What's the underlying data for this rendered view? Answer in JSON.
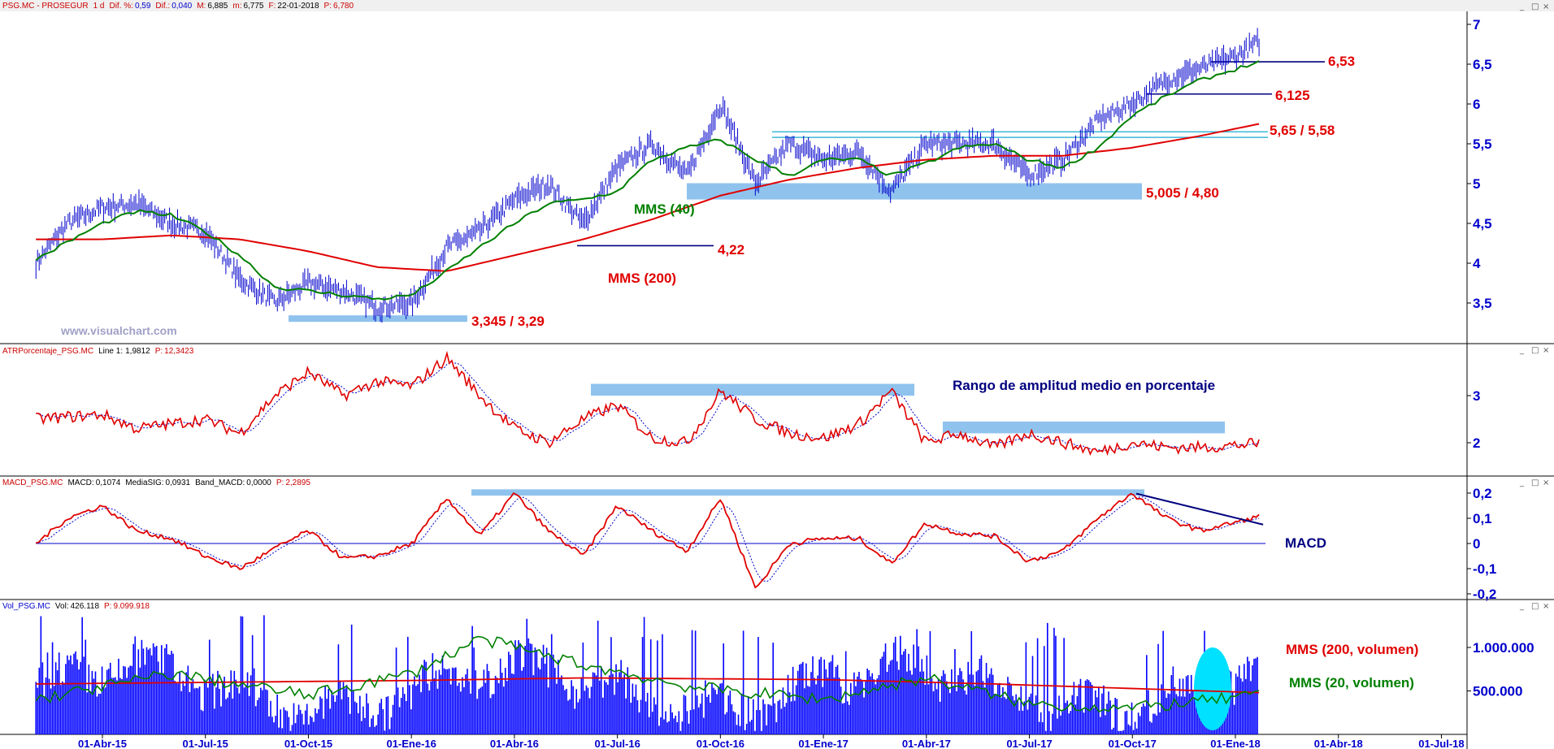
{
  "colors": {
    "price": "#0000cc",
    "mms200": "#e00000",
    "mms40": "#008000",
    "band": "#8fc3ee",
    "annot_red": "#e00000",
    "annot_green": "#008000",
    "annot_navy": "#000080",
    "axis": "#0000cc",
    "volume": "#0000ff",
    "highlight": "#00e0ff"
  },
  "panels": {
    "price": {
      "header": {
        "symbol": "PSG.MC - PROSEGUR",
        "interval": "1 d",
        "dif_pct_label": "Dif. %:",
        "dif_pct": "0,59",
        "dif_label": "Dif.:",
        "dif": "0,040",
        "max_label": "M:",
        "max": "6,885",
        "min_label": "m:",
        "min": "6,775",
        "date_label": "F:",
        "date": "22-01-2018",
        "last_label": "P:",
        "last": "6,780"
      },
      "watermark": "www.visualchart.com"
    },
    "atr": {
      "header": {
        "name": "ATRPorcentaje_PSG.MC",
        "line_label": "Line 1:",
        "line": "1,9812",
        "p_label": "P:",
        "p": "12,3423"
      }
    },
    "macd": {
      "header": {
        "name": "MACD_PSG.MC",
        "macd_label": "MACD:",
        "macd": "0,1074",
        "sig_label": "MediaSIG:",
        "sig": "0,0931",
        "band_label": "Band_MACD:",
        "band": "0,0000",
        "p_label": "P:",
        "p": "2,2895"
      }
    },
    "volume": {
      "header": {
        "name": "Vol_PSG.MC",
        "vol_label": "Vol:",
        "vol": "426.118",
        "p_label": "P:",
        "p": "9.099.918"
      }
    }
  },
  "annotations": {
    "mms40": "MMS (40)",
    "mms200": "MMS (200)",
    "support_low": "3,345 / 3,29",
    "level_422": "4,22",
    "band_500": "5,005 / 4,80",
    "band_565": "5,65 / 5,58",
    "level_6125": "6,125",
    "level_653": "6,53",
    "atr_title": "Rango de amplitud medio en porcentaje",
    "macd_title": "MACD",
    "vol_mms200": "MMS (200, volumen)",
    "vol_mms20": "MMS (20, volumen)"
  },
  "chart_data": [
    {
      "type": "line",
      "title": "PSG.MC - PROSEGUR",
      "xlabel": "",
      "ylabel": "",
      "x_ticks": [
        "01-Abr-15",
        "01-Jul-15",
        "01-Oct-15",
        "01-Ene-16",
        "01-Abr-16",
        "01-Jul-16",
        "01-Oct-16",
        "01-Ene-17",
        "01-Abr-17",
        "01-Jul-17",
        "01-Oct-17",
        "01-Ene-18",
        "01-Abr-18",
        "01-Jul-18"
      ],
      "y_ticks": [
        "3,5",
        "4",
        "4,5",
        "5",
        "5,5",
        "6",
        "6,5",
        "7"
      ],
      "ylim": [
        3.0,
        7.2
      ],
      "price_points": [
        [
          "2015-02-01",
          4.0
        ],
        [
          "2015-03-01",
          4.5
        ],
        [
          "2015-04-01",
          4.7
        ],
        [
          "2015-05-01",
          4.75
        ],
        [
          "2015-06-01",
          4.5
        ],
        [
          "2015-07-01",
          4.4
        ],
        [
          "2015-08-01",
          3.8
        ],
        [
          "2015-09-01",
          3.5
        ],
        [
          "2015-10-01",
          3.75
        ],
        [
          "2015-11-01",
          3.65
        ],
        [
          "2015-12-01",
          3.45
        ],
        [
          "2016-01-01",
          3.5
        ],
        [
          "2016-02-01",
          4.2
        ],
        [
          "2016-03-01",
          4.4
        ],
        [
          "2016-04-01",
          4.8
        ],
        [
          "2016-05-01",
          5.0
        ],
        [
          "2016-06-01",
          4.5
        ],
        [
          "2016-07-01",
          5.2
        ],
        [
          "2016-08-01",
          5.5
        ],
        [
          "2016-09-01",
          5.1
        ],
        [
          "2016-10-01",
          6.0
        ],
        [
          "2016-11-01",
          5.0
        ],
        [
          "2016-12-01",
          5.5
        ],
        [
          "2017-01-01",
          5.3
        ],
        [
          "2017-02-01",
          5.4
        ],
        [
          "2017-03-01",
          4.9
        ],
        [
          "2017-04-01",
          5.5
        ],
        [
          "2017-05-01",
          5.5
        ],
        [
          "2017-06-01",
          5.5
        ],
        [
          "2017-07-01",
          5.1
        ],
        [
          "2017-08-01",
          5.3
        ],
        [
          "2017-09-01",
          5.8
        ],
        [
          "2017-10-01",
          6.0
        ],
        [
          "2017-11-01",
          6.3
        ],
        [
          "2017-12-01",
          6.45
        ],
        [
          "2018-01-01",
          6.6
        ],
        [
          "2018-01-22",
          6.78
        ]
      ],
      "series": [
        {
          "name": "MMS (40)",
          "points": [
            [
              "2015-02-01",
              4.05
            ],
            [
              "2015-04-01",
              4.5
            ],
            [
              "2015-05-01",
              4.65
            ],
            [
              "2015-06-01",
              4.6
            ],
            [
              "2015-07-01",
              4.4
            ],
            [
              "2015-08-01",
              4.1
            ],
            [
              "2015-09-01",
              3.7
            ],
            [
              "2015-11-01",
              3.6
            ],
            [
              "2015-12-01",
              3.55
            ],
            [
              "2016-01-01",
              3.6
            ],
            [
              "2016-02-01",
              3.9
            ],
            [
              "2016-03-01",
              4.2
            ],
            [
              "2016-04-01",
              4.5
            ],
            [
              "2016-05-01",
              4.75
            ],
            [
              "2016-06-01",
              4.8
            ],
            [
              "2016-07-01",
              4.9
            ],
            [
              "2016-08-01",
              5.3
            ],
            [
              "2016-09-01",
              5.45
            ],
            [
              "2016-10-01",
              5.55
            ],
            [
              "2016-11-01",
              5.3
            ],
            [
              "2016-12-01",
              5.1
            ],
            [
              "2017-01-01",
              5.3
            ],
            [
              "2017-02-01",
              5.3
            ],
            [
              "2017-03-01",
              5.1
            ],
            [
              "2017-04-01",
              5.25
            ],
            [
              "2017-05-01",
              5.45
            ],
            [
              "2017-06-01",
              5.5
            ],
            [
              "2017-07-01",
              5.3
            ],
            [
              "2017-08-01",
              5.2
            ],
            [
              "2017-09-01",
              5.45
            ],
            [
              "2017-10-01",
              5.85
            ],
            [
              "2017-11-01",
              6.1
            ],
            [
              "2017-12-01",
              6.3
            ],
            [
              "2018-01-22",
              6.53
            ]
          ]
        },
        {
          "name": "MMS (200)",
          "points": [
            [
              "2015-02-01",
              4.3
            ],
            [
              "2015-04-01",
              4.3
            ],
            [
              "2015-06-01",
              4.35
            ],
            [
              "2015-08-01",
              4.3
            ],
            [
              "2015-10-01",
              4.15
            ],
            [
              "2015-12-01",
              3.95
            ],
            [
              "2016-02-01",
              3.9
            ],
            [
              "2016-04-01",
              4.1
            ],
            [
              "2016-06-01",
              4.3
            ],
            [
              "2016-08-01",
              4.55
            ],
            [
              "2016-10-01",
              4.85
            ],
            [
              "2016-12-01",
              5.05
            ],
            [
              "2017-02-01",
              5.2
            ],
            [
              "2017-04-01",
              5.3
            ],
            [
              "2017-06-01",
              5.35
            ],
            [
              "2017-08-01",
              5.35
            ],
            [
              "2017-10-01",
              5.45
            ],
            [
              "2017-12-01",
              5.6
            ],
            [
              "2018-01-22",
              5.75
            ]
          ]
        }
      ],
      "bands": [
        {
          "label": "3,345 / 3,29",
          "y": [
            3.29,
            3.345
          ]
        },
        {
          "label": "5,005 / 4,80",
          "y": [
            4.8,
            5.005
          ]
        },
        {
          "label": "5,65 / 5,58",
          "y": [
            5.58,
            5.65
          ]
        }
      ],
      "levels": [
        {
          "label": "4,22",
          "y": 4.22
        },
        {
          "label": "6,125",
          "y": 6.125
        },
        {
          "label": "6,53",
          "y": 6.53
        }
      ]
    },
    {
      "type": "line",
      "title": "ATRPorcentaje_PSG.MC",
      "y_ticks": [
        "2",
        "3"
      ],
      "ylim": [
        1.4,
        3.9
      ],
      "series": [
        {
          "name": "Line 1",
          "points": [
            [
              "2015-02-01",
              2.5
            ],
            [
              "2015-04-01",
              2.6
            ],
            [
              "2015-05-01",
              2.3
            ],
            [
              "2015-07-01",
              2.5
            ],
            [
              "2015-08-01",
              2.2
            ],
            [
              "2015-09-01",
              3.0
            ],
            [
              "2015-10-01",
              3.5
            ],
            [
              "2015-11-01",
              3.0
            ],
            [
              "2015-12-01",
              3.3
            ],
            [
              "2016-01-01",
              3.2
            ],
            [
              "2016-02-01",
              3.8
            ],
            [
              "2016-03-01",
              3.0
            ],
            [
              "2016-04-01",
              2.3
            ],
            [
              "2016-05-01",
              2.0
            ],
            [
              "2016-06-01",
              2.5
            ],
            [
              "2016-07-01",
              2.8
            ],
            [
              "2016-08-01",
              2.1
            ],
            [
              "2016-09-01",
              2.0
            ],
            [
              "2016-10-01",
              3.1
            ],
            [
              "2016-11-01",
              2.5
            ],
            [
              "2016-12-01",
              2.2
            ],
            [
              "2017-01-01",
              2.1
            ],
            [
              "2017-02-01",
              2.4
            ],
            [
              "2017-03-01",
              3.1
            ],
            [
              "2017-04-01",
              2.0
            ],
            [
              "2017-05-01",
              2.2
            ],
            [
              "2017-06-01",
              1.9
            ],
            [
              "2017-07-01",
              2.2
            ],
            [
              "2017-08-01",
              2.0
            ],
            [
              "2017-09-01",
              1.8
            ],
            [
              "2017-10-01",
              2.0
            ],
            [
              "2017-11-01",
              1.9
            ],
            [
              "2017-12-01",
              1.9
            ],
            [
              "2018-01-22",
              1.98
            ]
          ]
        }
      ],
      "bands": [
        {
          "y": [
            3.0,
            3.25
          ]
        },
        {
          "y": [
            2.2,
            2.45
          ]
        }
      ]
    },
    {
      "type": "line",
      "title": "MACD_PSG.MC",
      "y_ticks": [
        "-0,2",
        "-0,1",
        "0",
        "0,1",
        "0,2"
      ],
      "ylim": [
        -0.21,
        0.22
      ],
      "series": [
        {
          "name": "MACD",
          "points": [
            [
              "2015-02-01",
              0.0
            ],
            [
              "2015-03-01",
              0.1
            ],
            [
              "2015-04-01",
              0.15
            ],
            [
              "2015-05-01",
              0.05
            ],
            [
              "2015-06-01",
              0.02
            ],
            [
              "2015-07-01",
              -0.05
            ],
            [
              "2015-08-01",
              -0.1
            ],
            [
              "2015-09-01",
              -0.02
            ],
            [
              "2015-10-01",
              0.05
            ],
            [
              "2015-11-01",
              -0.06
            ],
            [
              "2015-12-01",
              -0.05
            ],
            [
              "2016-01-01",
              0.0
            ],
            [
              "2016-02-01",
              0.18
            ],
            [
              "2016-03-01",
              0.03
            ],
            [
              "2016-04-01",
              0.2
            ],
            [
              "2016-05-01",
              0.05
            ],
            [
              "2016-06-01",
              -0.05
            ],
            [
              "2016-07-01",
              0.15
            ],
            [
              "2016-08-01",
              0.05
            ],
            [
              "2016-09-01",
              -0.03
            ],
            [
              "2016-10-01",
              0.18
            ],
            [
              "2016-11-01",
              -0.18
            ],
            [
              "2016-12-01",
              0.0
            ],
            [
              "2017-01-01",
              0.02
            ],
            [
              "2017-02-01",
              0.02
            ],
            [
              "2017-03-01",
              -0.08
            ],
            [
              "2017-04-01",
              0.08
            ],
            [
              "2017-05-01",
              0.04
            ],
            [
              "2017-06-01",
              0.03
            ],
            [
              "2017-07-01",
              -0.07
            ],
            [
              "2017-08-01",
              -0.03
            ],
            [
              "2017-09-01",
              0.1
            ],
            [
              "2017-10-01",
              0.2
            ],
            [
              "2017-11-01",
              0.1
            ],
            [
              "2017-12-01",
              0.05
            ],
            [
              "2018-01-22",
              0.107
            ]
          ]
        }
      ],
      "bands": [
        {
          "y": [
            0.19,
            0.215
          ]
        }
      ]
    },
    {
      "type": "bar",
      "title": "Vol_PSG.MC",
      "y_ticks": [
        "500.000",
        "1.000.000"
      ],
      "ylim": [
        0,
        1450000
      ],
      "series": [
        {
          "name": "Vol",
          "values_note": "daily bars"
        },
        {
          "name": "MMS (200, volumen)",
          "points": [
            [
              "2015-02-01",
              580000
            ],
            [
              "2016-01-01",
              620000
            ],
            [
              "2016-06-01",
              650000
            ],
            [
              "2017-01-01",
              630000
            ],
            [
              "2017-06-01",
              580000
            ],
            [
              "2018-01-22",
              480000
            ]
          ]
        },
        {
          "name": "MMS (20, volumen)",
          "points": [
            [
              "2015-02-01",
              400000
            ],
            [
              "2015-06-01",
              700000
            ],
            [
              "2015-10-01",
              450000
            ],
            [
              "2016-01-01",
              700000
            ],
            [
              "2016-03-01",
              1100000
            ],
            [
              "2016-06-01",
              800000
            ],
            [
              "2016-09-01",
              550000
            ],
            [
              "2017-01-01",
              400000
            ],
            [
              "2017-04-01",
              650000
            ],
            [
              "2017-07-01",
              350000
            ],
            [
              "2017-10-01",
              300000
            ],
            [
              "2018-01-22",
              450000
            ]
          ]
        }
      ]
    }
  ],
  "window_controls": {
    "min": "_",
    "restore": "□",
    "close": "×"
  }
}
